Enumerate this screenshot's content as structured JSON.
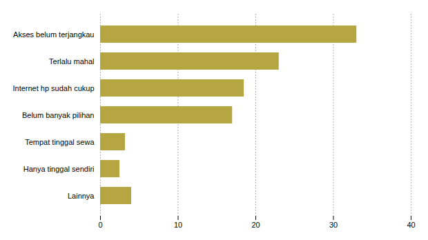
{
  "chart_data": {
    "type": "bar",
    "orientation": "horizontal",
    "categories": [
      "Lainnya",
      "Hanya tinggal sendiri",
      "Tempat tinggal sewa",
      "Belum banyak pilihan",
      "Internet hp sudah cukup",
      "Terlalu mahal",
      "Akses belum terjangkau"
    ],
    "values": [
      4.0,
      2.5,
      3.2,
      17.0,
      18.5,
      23.0,
      33.0
    ],
    "color": "#b5a642",
    "xlim": [
      0,
      40
    ],
    "xticks": [
      0,
      10,
      20,
      30,
      40
    ],
    "grid": true
  }
}
